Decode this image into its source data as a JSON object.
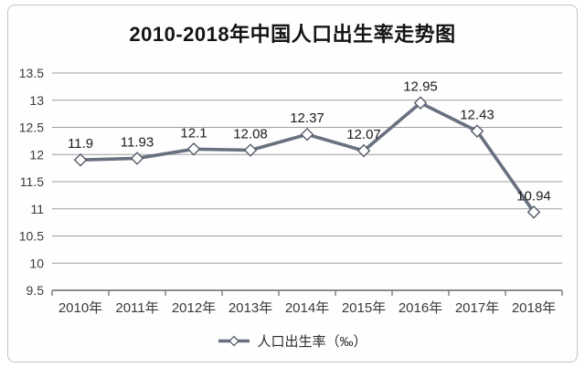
{
  "window": {
    "background": "#ffffff",
    "border_color": "#c3c3c3"
  },
  "chart_data": {
    "type": "line",
    "title": "2010-2018年中国人口出生率走势图",
    "categories": [
      "2010年",
      "2011年",
      "2012年",
      "2013年",
      "2014年",
      "2015年",
      "2016年",
      "2017年",
      "2018年"
    ],
    "series": [
      {
        "name": "人口出生率（‰）",
        "values": [
          11.9,
          11.93,
          12.1,
          12.08,
          12.37,
          12.07,
          12.95,
          12.43,
          10.94
        ],
        "data_labels": [
          "11.9",
          "11.93",
          "12.1",
          "12.08",
          "12.37",
          "12.07",
          "12.95",
          "12.43",
          "10.94"
        ]
      }
    ],
    "xlabel": "",
    "ylabel": "",
    "ylim": [
      9.5,
      13.5
    ],
    "ytick_step": 0.5,
    "yticks": [
      9.5,
      10,
      10.5,
      11,
      11.5,
      12,
      12.5,
      13,
      13.5
    ],
    "grid": true,
    "legend_position": "bottom",
    "marker": "diamond",
    "colors": {
      "line": "#69707f",
      "marker_fill": "#ffffff",
      "marker_stroke": "#565c68",
      "grid": "#9e9e9e",
      "axis": "#7b7b7b",
      "tick_text": "#3a3a3a",
      "data_label": "#1c1c1c",
      "title": "#141414"
    }
  }
}
